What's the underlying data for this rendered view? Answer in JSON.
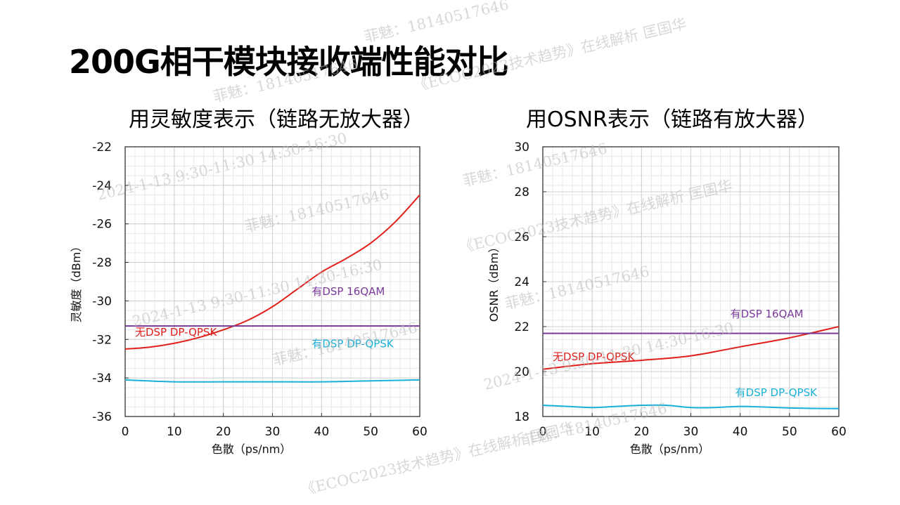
{
  "title": "200G相干模块接收端性能对比",
  "watermarks": [
    "菲魅：18140517646",
    "菲魅：18140517646",
    "菲魅：18140517646",
    "菲魅：18140517646",
    "菲魅：18140517646",
    "菲魅：18140517646",
    "菲魅：18140517646",
    "《ECOC2023技术趋势》在线解析 匡国华",
    "《ECOC2023技术趋势》在线解析 匡国华",
    "《ECOC2023技术趋势》在线解析 匡国华",
    "2024-1-13 9:30-11:30 14:30-16:30",
    "2024-1-13 9:30-11:30 14:30-16:30",
    "2024-1-13 9:30-11:30 14:30-16:30"
  ],
  "chart_data": [
    {
      "type": "line",
      "title": "用灵敏度表示（链路无放大器）",
      "xlabel": "色散（ps/nm）",
      "ylabel": "灵敏度（dBm）",
      "xlim": [
        0,
        60
      ],
      "ylim": [
        -36,
        -22
      ],
      "xticks": [
        0,
        10,
        20,
        30,
        40,
        50,
        60
      ],
      "yticks": [
        -36,
        -34,
        -32,
        -30,
        -28,
        -26,
        -24,
        -22
      ],
      "grid": true,
      "series": [
        {
          "name": "无DSP DP-QPSK",
          "color": "#e0201b",
          "x": [
            0,
            5,
            10,
            15,
            20,
            25,
            30,
            35,
            40,
            45,
            50,
            55,
            60
          ],
          "y": [
            -32.5,
            -32.4,
            -32.2,
            -31.9,
            -31.5,
            -31.0,
            -30.3,
            -29.4,
            -28.5,
            -27.8,
            -27.0,
            -25.9,
            -24.5
          ]
        },
        {
          "name": "有DSP 16QAM",
          "color": "#7a3a9a",
          "x": [
            0,
            60
          ],
          "y": [
            -31.3,
            -31.3
          ]
        },
        {
          "name": "有DSP DP-QPSK",
          "color": "#1ab0d8",
          "x": [
            0,
            10,
            20,
            30,
            40,
            50,
            60
          ],
          "y": [
            -34.1,
            -34.2,
            -34.2,
            -34.2,
            -34.2,
            -34.15,
            -34.1
          ]
        }
      ],
      "annotations": [
        {
          "text": "无DSP DP-QPSK",
          "x": 2,
          "y": -31.8,
          "color": "#e0201b"
        },
        {
          "text": "有DSP 16QAM",
          "x": 38,
          "y": -29.7,
          "color": "#7a3a9a"
        },
        {
          "text": "有DSP DP-QPSK",
          "x": 38,
          "y": -32.4,
          "color": "#1ab0d8"
        }
      ]
    },
    {
      "type": "line",
      "title": "用OSNR表示（链路有放大器）",
      "xlabel": "色散（ps/nm）",
      "ylabel": "OSNR（dBm）",
      "xlim": [
        0,
        60
      ],
      "ylim": [
        18,
        30
      ],
      "xticks": [
        0,
        10,
        20,
        30,
        40,
        50,
        60
      ],
      "yticks": [
        18,
        20,
        22,
        24,
        26,
        28,
        30
      ],
      "grid": true,
      "series": [
        {
          "name": "无DSP DP-QPSK",
          "color": "#e0201b",
          "x": [
            0,
            10,
            20,
            30,
            40,
            50,
            60
          ],
          "y": [
            20.1,
            20.35,
            20.5,
            20.7,
            21.1,
            21.5,
            22.0
          ]
        },
        {
          "name": "有DSP 16QAM",
          "color": "#7a3a9a",
          "x": [
            0,
            60
          ],
          "y": [
            21.7,
            21.7
          ]
        },
        {
          "name": "有DSP DP-QPSK",
          "color": "#1ab0d8",
          "x": [
            0,
            5,
            10,
            15,
            20,
            25,
            30,
            35,
            40,
            45,
            50,
            55,
            60
          ],
          "y": [
            18.5,
            18.45,
            18.4,
            18.45,
            18.5,
            18.5,
            18.4,
            18.4,
            18.45,
            18.42,
            18.38,
            18.36,
            18.35
          ]
        }
      ],
      "annotations": [
        {
          "text": "有DSP 16QAM",
          "x": 38,
          "y": 22.4,
          "color": "#7a3a9a"
        },
        {
          "text": "无DSP DP-QPSK",
          "x": 2,
          "y": 20.5,
          "color": "#e0201b"
        },
        {
          "text": "有DSP DP-QPSK",
          "x": 39,
          "y": 18.9,
          "color": "#1ab0d8"
        }
      ]
    }
  ]
}
